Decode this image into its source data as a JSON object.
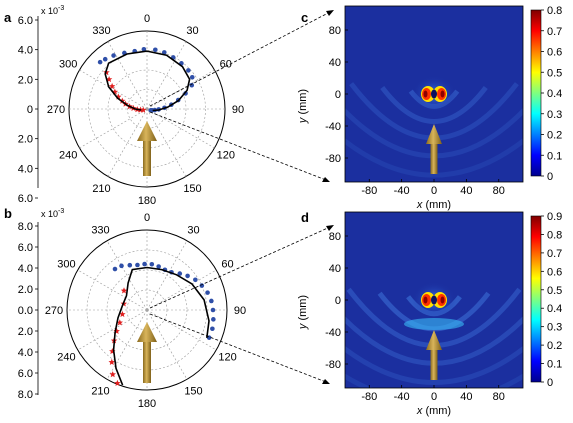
{
  "chart_data": [
    {
      "panel": "a",
      "type": "polar-scatter",
      "exponent_label": "x 10",
      "exponent_sup": "-3",
      "r_ticks_upper": [
        "6.0",
        "4.0",
        "2.0",
        "0"
      ],
      "r_ticks_lower": [
        "2.0",
        "4.0",
        "6.0"
      ],
      "r_max": 6.0,
      "angle_labels": [
        "0",
        "30",
        "60",
        "90",
        "120",
        "150",
        "180",
        "210",
        "240",
        "270",
        "300",
        "330"
      ],
      "series": [
        {
          "marker": "circle",
          "color": "#2f4fa8",
          "points": [
            [
              8,
              4.6
            ],
            [
              17,
              4.55
            ],
            [
              27,
              4.45
            ],
            [
              37,
              4.4
            ],
            [
              47,
              4.35
            ],
            [
              55,
              4.25
            ],
            [
              62,
              3.9
            ],
            [
              68,
              3.2
            ],
            [
              74,
              2.5
            ],
            [
              80,
              1.9
            ],
            [
              86,
              1.35
            ],
            [
              92,
              0.9
            ],
            [
              98,
              0.6
            ],
            [
              104,
              0.4
            ],
            [
              110,
              0.3
            ],
            [
              -3,
              4.6
            ],
            [
              -12,
              4.55
            ],
            [
              -22,
              4.65
            ],
            [
              -32,
              4.85
            ],
            [
              -40,
              5.0
            ],
            [
              -45,
              5.1
            ]
          ]
        },
        {
          "marker": "star",
          "color": "#e02020",
          "points": [
            [
              -48,
              4.2
            ],
            [
              -52,
              3.7
            ],
            [
              -57,
              3.2
            ],
            [
              -62,
              2.8
            ],
            [
              -67,
              2.4
            ],
            [
              -72,
              2.0
            ],
            [
              -77,
              1.7
            ],
            [
              -82,
              1.35
            ],
            [
              -87,
              1.05
            ],
            [
              -93,
              0.75
            ],
            [
              -98,
              0.5
            ],
            [
              -105,
              0.3
            ]
          ]
        },
        {
          "marker": "line",
          "color": "#000000",
          "points": [
            [
              0,
              4.45
            ],
            [
              20,
              4.4
            ],
            [
              40,
              4.25
            ],
            [
              55,
              4.0
            ],
            [
              65,
              3.4
            ],
            [
              75,
              2.5
            ],
            [
              85,
              1.6
            ],
            [
              95,
              0.9
            ],
            [
              105,
              0.45
            ],
            [
              -20,
              4.5
            ],
            [
              -40,
              4.6
            ],
            [
              -50,
              4.2
            ],
            [
              -60,
              3.4
            ],
            [
              -70,
              2.4
            ],
            [
              -80,
              1.5
            ],
            [
              -90,
              0.9
            ],
            [
              -100,
              0.45
            ]
          ]
        }
      ]
    },
    {
      "panel": "b",
      "type": "polar-scatter",
      "exponent_label": "x 10",
      "exponent_sup": "-3",
      "r_ticks_upper": [
        "8.0",
        "6.0",
        "4.0",
        "2.0",
        "0.0"
      ],
      "r_ticks_lower": [
        "2.0",
        "4.0",
        "6.0",
        "8.0"
      ],
      "r_max": 8.0,
      "angle_labels": [
        "0",
        "30",
        "60",
        "90",
        "120",
        "150",
        "180",
        "210",
        "240",
        "270",
        "300",
        "330"
      ],
      "series": [
        {
          "marker": "circle",
          "color": "#2f4fa8",
          "points": [
            [
              -3,
              4.6
            ],
            [
              6,
              4.6
            ],
            [
              15,
              4.5
            ],
            [
              24,
              4.4
            ],
            [
              33,
              4.5
            ],
            [
              42,
              4.9
            ],
            [
              50,
              5.3
            ],
            [
              58,
              5.7
            ],
            [
              66,
              6.0
            ],
            [
              74,
              6.3
            ],
            [
              82,
              6.5
            ],
            [
              90,
              6.6
            ],
            [
              98,
              6.7
            ],
            [
              106,
              6.8
            ],
            [
              114,
              6.8
            ],
            [
              -12,
              4.6
            ],
            [
              -21,
              4.8
            ],
            [
              -30,
              5.1
            ],
            [
              -38,
              5.2
            ]
          ]
        },
        {
          "marker": "star",
          "color": "#e02020",
          "points": [
            [
              -50,
              3.0
            ],
            [
              -75,
              2.4
            ],
            [
              -100,
              2.5
            ],
            [
              -115,
              3.0
            ],
            [
              -125,
              3.7
            ],
            [
              -133,
              4.5
            ],
            [
              -140,
              5.4
            ],
            [
              -146,
              6.3
            ],
            [
              -152,
              7.3
            ],
            [
              -158,
              7.9
            ]
          ]
        },
        {
          "marker": "line",
          "color": "#000000",
          "points": [
            [
              0,
              4.25
            ],
            [
              20,
              4.3
            ],
            [
              40,
              4.6
            ],
            [
              60,
              5.2
            ],
            [
              80,
              5.8
            ],
            [
              100,
              6.3
            ],
            [
              115,
              6.6
            ],
            [
              -20,
              4.3
            ],
            [
              -35,
              3.3
            ],
            [
              -55,
              2.5
            ],
            [
              -80,
              2.5
            ],
            [
              -105,
              3.0
            ],
            [
              -125,
              3.9
            ],
            [
              -140,
              5.2
            ],
            [
              -152,
              6.6
            ],
            [
              -162,
              7.9
            ]
          ]
        }
      ]
    },
    {
      "panel": "c",
      "type": "heatmap",
      "xlabel_var": "x",
      "xlabel_unit": " (mm)",
      "ylabel_var": "y",
      "ylabel_unit": " (mm)",
      "x_ticks": [
        "-80",
        "-40",
        "0",
        "40",
        "80"
      ],
      "y_ticks": [
        "80",
        "40",
        "0",
        "-40",
        "-80"
      ],
      "xlim": [
        -110,
        110
      ],
      "ylim": [
        -110,
        110
      ],
      "colorbar_ticks": [
        "0",
        "0.1",
        "0.2",
        "0.3",
        "0.4",
        "0.5",
        "0.6",
        "0.7",
        "0.8"
      ],
      "colorbar_range": [
        0,
        0.8
      ]
    },
    {
      "panel": "d",
      "type": "heatmap",
      "xlabel_var": "x",
      "xlabel_unit": " (mm)",
      "ylabel_var": "y",
      "ylabel_unit": " (mm)",
      "x_ticks": [
        "-80",
        "-40",
        "0",
        "40",
        "80"
      ],
      "y_ticks": [
        "80",
        "40",
        "0",
        "-40",
        "-80"
      ],
      "xlim": [
        -110,
        110
      ],
      "ylim": [
        -110,
        110
      ],
      "colorbar_ticks": [
        "0",
        "0.1",
        "0.2",
        "0.3",
        "0.4",
        "0.5",
        "0.6",
        "0.7",
        "0.8",
        "0.9"
      ],
      "colorbar_range": [
        0,
        0.9
      ]
    }
  ],
  "colors": {
    "arrow": "#b08a2e",
    "heat_bg": "#1a2fa0",
    "circle_marker": "#2f4fa8",
    "star_marker": "#e02020"
  }
}
